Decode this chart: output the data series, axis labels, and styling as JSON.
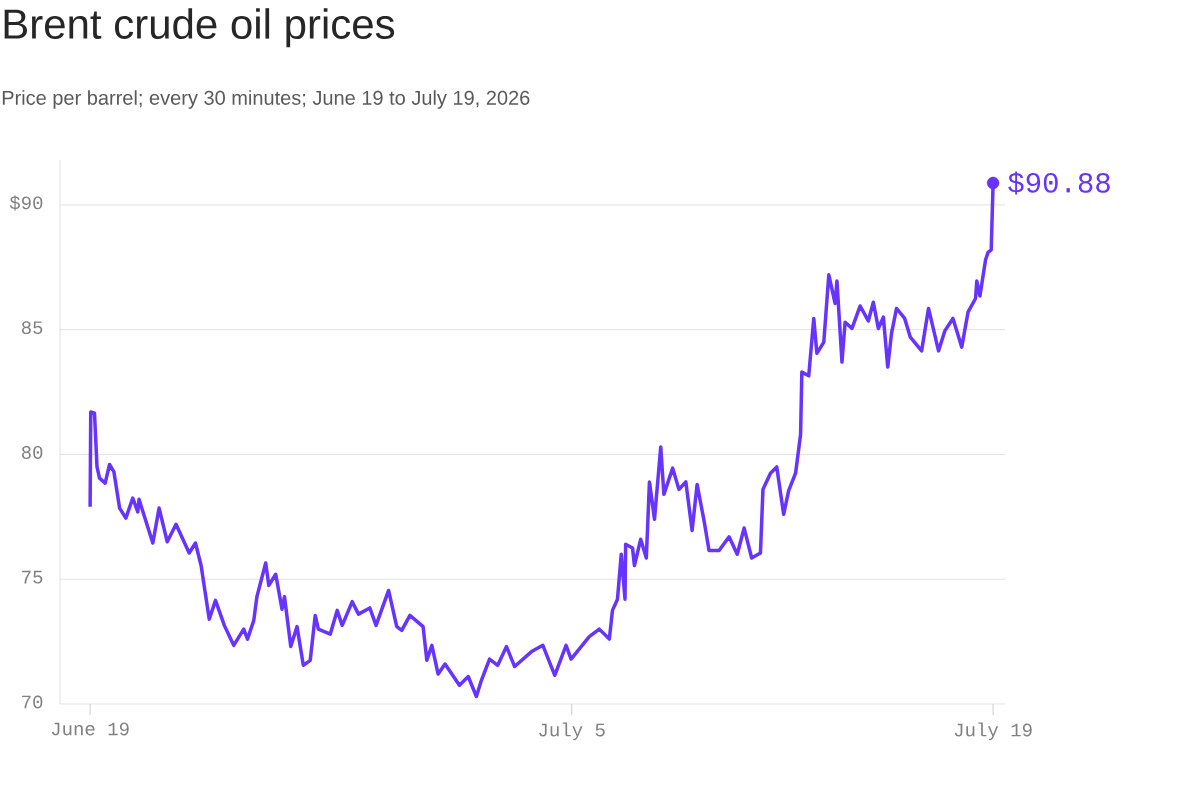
{
  "chart_data": {
    "type": "line",
    "title": "Brent crude oil prices",
    "subtitle": "Price per barrel; every 30 minutes; June 19 to July 19, 2026",
    "x": [
      "2026-06-19T00:00",
      "2026-06-19T00:30",
      "2026-06-19T03:30",
      "2026-06-19T05:30",
      "2026-06-19T07:30",
      "2026-06-19T12:00",
      "2026-06-19T15:30",
      "2026-06-19T19:00",
      "2026-06-19T23:30",
      "2026-06-20T04:30",
      "2026-06-20T10:00",
      "2026-06-20T14:00",
      "2026-06-20T15:00",
      "2026-06-21T02:00",
      "2026-06-21T07:00",
      "2026-06-21T13:30",
      "2026-06-21T20:30",
      "2026-06-22T07:00",
      "2026-06-22T12:00",
      "2026-06-22T16:30",
      "2026-06-22T23:00",
      "2026-06-23T04:00",
      "2026-06-23T11:00",
      "2026-06-23T18:30",
      "2026-06-24T02:30",
      "2026-06-24T05:30",
      "2026-06-24T10:30",
      "2026-06-24T13:00",
      "2026-06-24T20:00",
      "2026-06-24T22:30",
      "2026-06-25T04:00",
      "2026-06-25T09:00",
      "2026-06-25T11:00",
      "2026-06-25T16:00",
      "2026-06-25T21:00",
      "2026-06-26T02:00",
      "2026-06-26T07:30",
      "2026-06-26T11:30",
      "2026-06-26T14:00",
      "2026-06-26T23:30",
      "2026-06-27T05:00",
      "2026-06-27T09:00",
      "2026-06-27T17:00",
      "2026-06-27T22:00",
      "2026-06-28T07:00",
      "2026-06-28T12:00",
      "2026-06-28T22:00",
      "2026-06-29T04:30",
      "2026-06-29T08:30",
      "2026-06-29T15:00",
      "2026-06-30T01:30",
      "2026-06-30T04:30",
      "2026-06-30T08:30",
      "2026-06-30T13:30",
      "2026-06-30T19:00",
      "2026-07-01T06:30",
      "2026-07-01T13:30",
      "2026-07-01T20:00",
      "2026-07-02T00:00",
      "2026-07-02T06:30",
      "2026-07-02T13:00",
      "2026-07-02T20:00",
      "2026-07-03T02:30",
      "2026-07-03T16:00",
      "2026-07-04T01:00",
      "2026-07-04T10:30",
      "2026-07-04T19:30",
      "2026-07-04T23:30",
      "2026-07-05T14:00",
      "2026-07-05T22:00",
      "2026-07-06T06:00",
      "2026-07-06T08:30",
      "2026-07-06T12:30",
      "2026-07-06T15:30",
      "2026-07-06T18:30",
      "2026-07-06T19:00",
      "2026-07-07T00:30",
      "2026-07-07T02:00",
      "2026-07-07T07:00",
      "2026-07-07T11:30",
      "2026-07-07T14:00",
      "2026-07-07T18:00",
      "2026-07-07T23:00",
      "2026-07-08T01:30",
      "2026-07-08T08:30",
      "2026-07-08T13:30",
      "2026-07-08T19:00",
      "2026-07-09T00:00",
      "2026-07-09T04:00",
      "2026-07-09T09:30",
      "2026-07-09T13:30",
      "2026-07-09T21:30",
      "2026-07-10T05:30",
      "2026-07-10T12:00",
      "2026-07-10T17:30",
      "2026-07-10T23:30",
      "2026-07-11T06:30",
      "2026-07-11T08:30",
      "2026-07-11T14:30",
      "2026-07-11T19:30",
      "2026-07-12T01:00",
      "2026-07-12T05:00",
      "2026-07-12T10:30",
      "2026-07-12T14:30",
      "2026-07-12T15:30",
      "2026-07-12T21:00",
      "2026-07-13T01:00",
      "2026-07-13T03:30",
      "2026-07-13T09:00",
      "2026-07-13T13:00",
      "2026-07-13T18:00",
      "2026-07-13T19:30",
      "2026-07-13T23:30",
      "2026-07-14T02:00",
      "2026-07-14T07:30",
      "2026-07-14T14:00",
      "2026-07-14T20:30",
      "2026-07-15T00:30",
      "2026-07-15T04:30",
      "2026-07-15T08:30",
      "2026-07-15T12:00",
      "2026-07-15T15:00",
      "2026-07-15T19:00",
      "2026-07-16T01:30",
      "2026-07-16T06:00",
      "2026-07-16T15:00",
      "2026-07-16T20:30",
      "2026-07-17T04:30",
      "2026-07-17T09:30",
      "2026-07-17T16:00",
      "2026-07-17T23:00",
      "2026-07-18T04:00",
      "2026-07-18T10:00",
      "2026-07-18T11:00",
      "2026-07-18T13:30",
      "2026-07-18T18:00",
      "2026-07-18T20:00",
      "2026-07-18T22:30",
      "2026-07-19T00:00"
    ],
    "series": [
      {
        "color": "#6633ff",
        "values": [
          77.9,
          81.7,
          81.65,
          79.5,
          79.05,
          78.85,
          79.6,
          79.3,
          77.85,
          77.45,
          78.25,
          77.7,
          78.2,
          76.45,
          77.85,
          76.5,
          77.2,
          76.05,
          76.45,
          75.55,
          73.4,
          74.15,
          73.15,
          72.35,
          73.0,
          72.6,
          73.35,
          74.3,
          75.65,
          74.75,
          75.2,
          73.8,
          74.3,
          72.3,
          73.1,
          71.55,
          71.75,
          73.55,
          73.0,
          72.8,
          73.75,
          73.15,
          74.1,
          73.6,
          73.85,
          73.15,
          74.55,
          73.1,
          72.95,
          73.55,
          73.1,
          71.75,
          72.35,
          71.2,
          71.6,
          70.75,
          71.1,
          70.3,
          70.95,
          71.8,
          71.55,
          72.3,
          71.5,
          72.1,
          72.35,
          71.15,
          72.35,
          71.8,
          72.7,
          73.0,
          72.6,
          73.75,
          74.2,
          76.0,
          74.2,
          76.4,
          76.25,
          75.55,
          76.6,
          75.85,
          78.9,
          77.4,
          80.3,
          78.4,
          79.45,
          78.6,
          78.9,
          76.95,
          78.8,
          77.35,
          76.15,
          76.15,
          76.7,
          76.0,
          77.05,
          75.85,
          76.05,
          78.6,
          79.25,
          79.5,
          77.6,
          78.55,
          79.25,
          80.8,
          83.3,
          83.15,
          85.45,
          84.05,
          84.5,
          87.2,
          86.05,
          86.95,
          83.7,
          85.3,
          85.05,
          85.95,
          85.35,
          86.1,
          85.05,
          85.5,
          83.5,
          84.85,
          85.85,
          85.45,
          84.7,
          84.15,
          85.85,
          84.15,
          84.95,
          85.45,
          84.3,
          85.7,
          86.25,
          86.95,
          86.35,
          87.8,
          88.1,
          88.2,
          90.88
        ]
      }
    ],
    "xlim": [
      "2026-06-18T00:00",
      "2026-07-19T09:30"
    ],
    "ylim": [
      70,
      91.8
    ],
    "xticks": [
      {
        "value": "2026-06-19",
        "label": "June 19"
      },
      {
        "value": "2026-07-05",
        "label": "July 5"
      },
      {
        "value": "2026-07-19",
        "label": "July 19"
      }
    ],
    "yticks": [
      70,
      75,
      80,
      85,
      {
        "value": 90,
        "label": "$90"
      }
    ],
    "grid": "y",
    "annotations": [
      {
        "text": "$90.88",
        "x": "2026-07-19T00:00",
        "y": 90.88
      }
    ]
  }
}
